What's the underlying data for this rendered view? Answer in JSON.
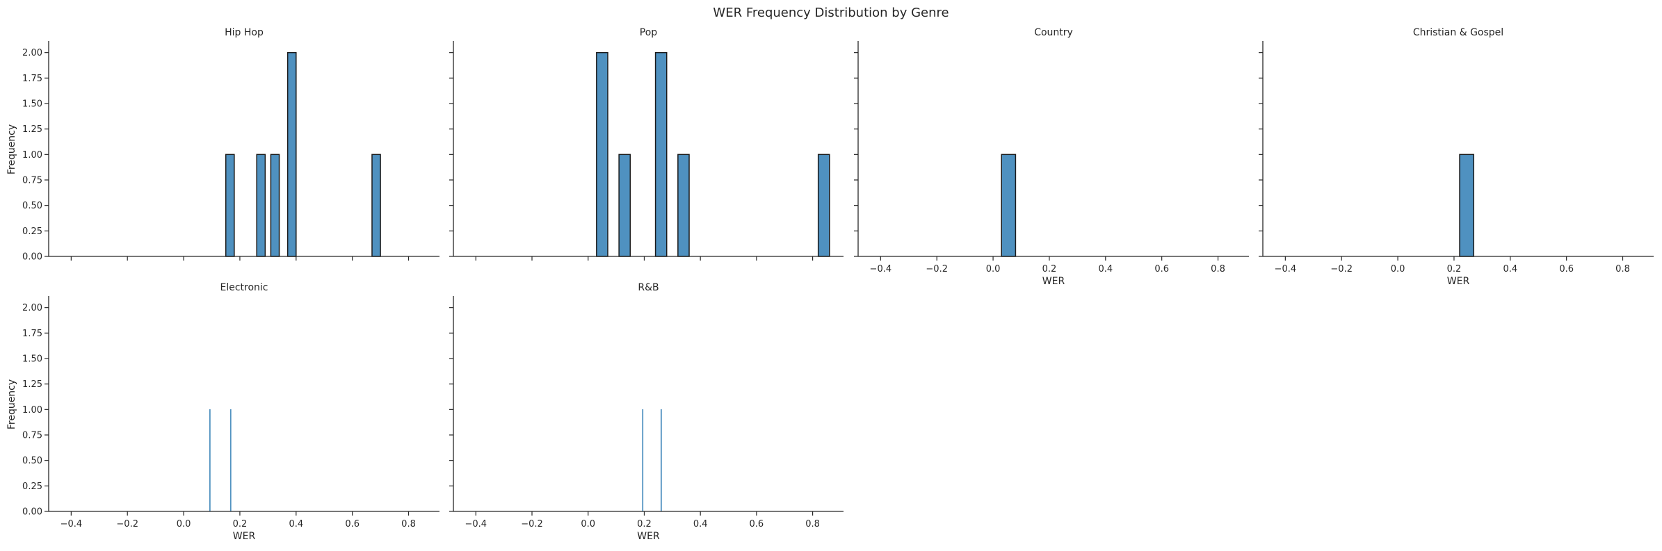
{
  "figure": {
    "title": "WER Frequency Distribution by Genre"
  },
  "style": {
    "bar_fill": "#4f91c0",
    "bar_edge": "#1a1a1a",
    "axis_color": "#262626",
    "text_color": "#262626"
  },
  "chart_data": [
    {
      "type": "bar",
      "panel": "Hip Hop",
      "title": "Hip Hop",
      "xlabel": "",
      "ylabel": "Frequency",
      "xlim": [
        -0.48,
        0.91
      ],
      "ylim": [
        0,
        2.1
      ],
      "x_ticks": [
        -0.4,
        -0.2,
        0.0,
        0.2,
        0.4,
        0.6,
        0.8
      ],
      "x_tick_labels": [],
      "y_ticks": [
        "0.00",
        "0.25",
        "0.50",
        "0.75",
        "1.00",
        "1.25",
        "1.50",
        "1.75",
        "2.00"
      ],
      "bins": [
        {
          "x0": 0.15,
          "x1": 0.18,
          "count": 1
        },
        {
          "x0": 0.26,
          "x1": 0.29,
          "count": 1
        },
        {
          "x0": 0.31,
          "x1": 0.34,
          "count": 1
        },
        {
          "x0": 0.37,
          "x1": 0.4,
          "count": 2
        },
        {
          "x0": 0.67,
          "x1": 0.7,
          "count": 1
        }
      ]
    },
    {
      "type": "bar",
      "panel": "Pop",
      "title": "Pop",
      "xlabel": "",
      "ylabel": "",
      "xlim": [
        -0.48,
        0.91
      ],
      "ylim": [
        0,
        2.1
      ],
      "x_ticks": [
        -0.4,
        -0.2,
        0.0,
        0.2,
        0.4,
        0.6,
        0.8
      ],
      "x_tick_labels": [],
      "y_ticks": [],
      "bins": [
        {
          "x0": 0.03,
          "x1": 0.07,
          "count": 2
        },
        {
          "x0": 0.11,
          "x1": 0.15,
          "count": 1
        },
        {
          "x0": 0.24,
          "x1": 0.28,
          "count": 2
        },
        {
          "x0": 0.32,
          "x1": 0.36,
          "count": 1
        },
        {
          "x0": 0.82,
          "x1": 0.86,
          "count": 1
        }
      ]
    },
    {
      "type": "bar",
      "panel": "Country",
      "title": "Country",
      "xlabel": "WER",
      "ylabel": "",
      "xlim": [
        -0.48,
        0.91
      ],
      "ylim": [
        0,
        2.1
      ],
      "x_ticks": [
        -0.4,
        -0.2,
        0.0,
        0.2,
        0.4,
        0.6,
        0.8
      ],
      "x_tick_labels": [
        "−0.4",
        "−0.2",
        "0.0",
        "0.2",
        "0.4",
        "0.6",
        "0.8"
      ],
      "y_ticks": [],
      "bins": [
        {
          "x0": 0.03,
          "x1": 0.08,
          "count": 1
        }
      ]
    },
    {
      "type": "bar",
      "panel": "Christian & Gospel",
      "title": "Christian & Gospel",
      "xlabel": "WER",
      "ylabel": "",
      "xlim": [
        -0.48,
        0.91
      ],
      "ylim": [
        0,
        2.1
      ],
      "x_ticks": [
        -0.4,
        -0.2,
        0.0,
        0.2,
        0.4,
        0.6,
        0.8
      ],
      "x_tick_labels": [
        "−0.4",
        "−0.2",
        "0.0",
        "0.2",
        "0.4",
        "0.6",
        "0.8"
      ],
      "y_ticks": [],
      "bins": [
        {
          "x0": 0.22,
          "x1": 0.27,
          "count": 1
        }
      ]
    },
    {
      "type": "bar",
      "panel": "Electronic",
      "title": "Electronic",
      "xlabel": "WER",
      "ylabel": "Frequency",
      "xlim": [
        -0.48,
        0.91
      ],
      "ylim": [
        0,
        2.1
      ],
      "x_ticks": [
        -0.4,
        -0.2,
        0.0,
        0.2,
        0.4,
        0.6,
        0.8
      ],
      "x_tick_labels": [
        "−0.4",
        "−0.2",
        "0.0",
        "0.2",
        "0.4",
        "0.6",
        "0.8"
      ],
      "y_ticks": [
        "0.00",
        "0.25",
        "0.50",
        "0.75",
        "1.00",
        "1.25",
        "1.50",
        "1.75",
        "2.00"
      ],
      "bins": [
        {
          "x0": 0.092,
          "x1": 0.094,
          "count": 1
        },
        {
          "x0": 0.166,
          "x1": 0.168,
          "count": 1
        }
      ]
    },
    {
      "type": "bar",
      "panel": "R&B",
      "title": "R&B",
      "xlabel": "WER",
      "ylabel": "",
      "xlim": [
        -0.48,
        0.91
      ],
      "ylim": [
        0,
        2.1
      ],
      "x_ticks": [
        -0.4,
        -0.2,
        0.0,
        0.2,
        0.4,
        0.6,
        0.8
      ],
      "x_tick_labels": [
        "−0.4",
        "−0.2",
        "0.0",
        "0.2",
        "0.4",
        "0.6",
        "0.8"
      ],
      "y_ticks": [],
      "bins": [
        {
          "x0": 0.193,
          "x1": 0.195,
          "count": 1
        },
        {
          "x0": 0.259,
          "x1": 0.261,
          "count": 1
        }
      ]
    }
  ]
}
